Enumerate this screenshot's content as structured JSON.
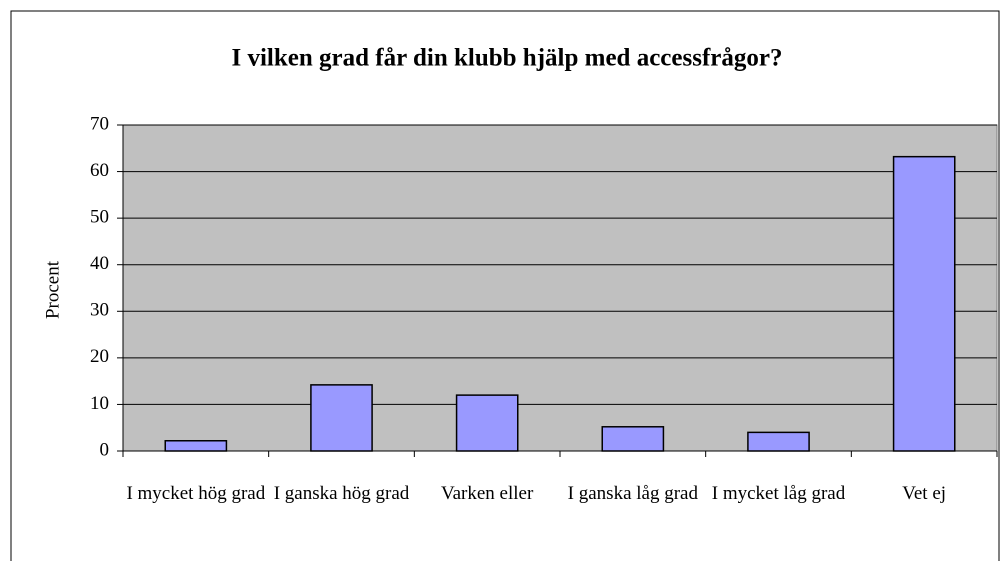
{
  "chart_data": {
    "type": "bar",
    "title": "I vilken grad får din klubb hjälp med accessfrågor?",
    "y_label": "Procent",
    "categories": [
      "I mycket hög grad",
      "I ganska hög grad",
      "Varken eller",
      "I ganska låg grad",
      "I mycket låg grad",
      "Vet ej"
    ],
    "values": [
      2.2,
      14.2,
      12,
      5.2,
      4,
      63.2
    ],
    "color": "#9999ff",
    "ylim": [
      0,
      70
    ],
    "yticks": [
      0,
      10,
      20,
      30,
      40,
      50,
      60,
      70
    ],
    "grid": true
  }
}
